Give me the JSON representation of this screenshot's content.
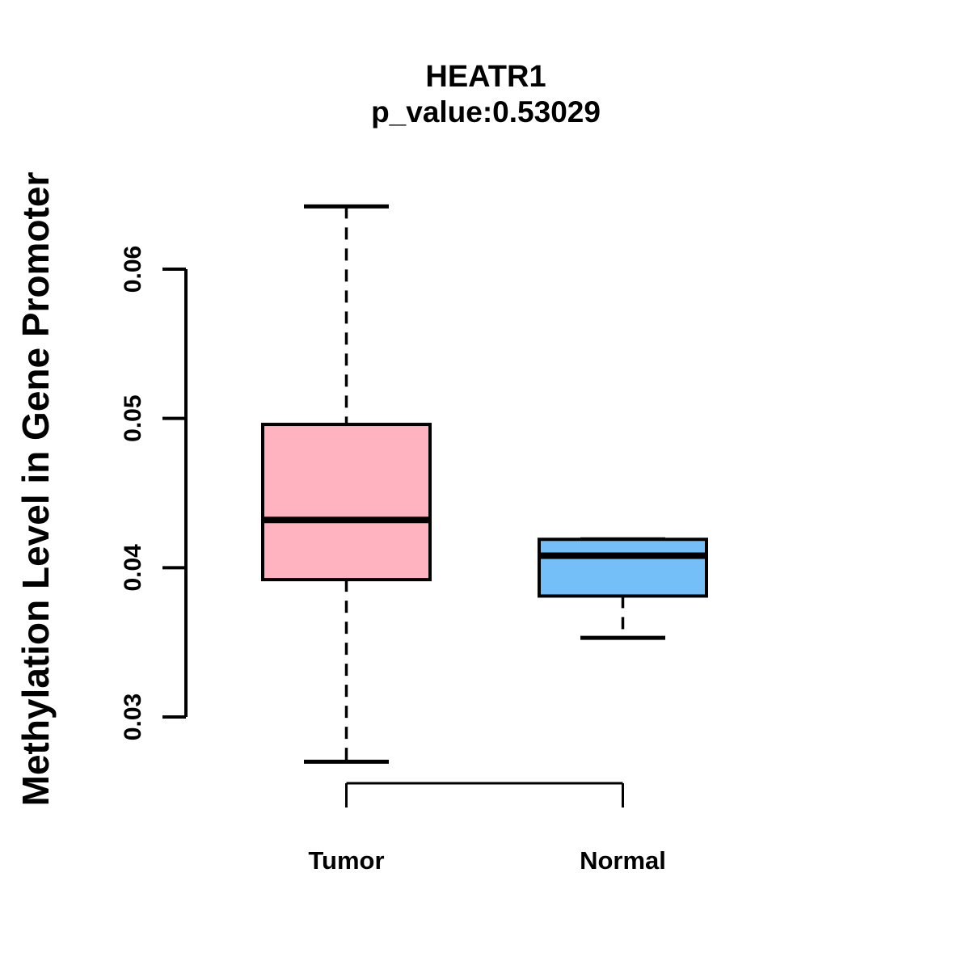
{
  "figure": {
    "background": "#FFFFFF",
    "stroke_color": "#000000"
  },
  "chart_data": {
    "type": "boxplot",
    "title": "HEATR1",
    "subtitle": "p_value:0.53029",
    "ylabel": "Methylation Level in Gene Promoter",
    "xlabel": "",
    "categories": [
      "Tumor",
      "Normal"
    ],
    "y_ticks": [
      0.03,
      0.04,
      0.05,
      0.06
    ],
    "y_tick_labels": [
      "0.03",
      "0.04",
      "0.05",
      "0.06"
    ],
    "ylim": [
      0.026,
      0.065
    ],
    "grid": false,
    "legend": "none",
    "series": [
      {
        "name": "Tumor",
        "color": "#FFB3C1",
        "lower_whisker": 0.027,
        "q1": 0.0392,
        "median": 0.0432,
        "q3": 0.0496,
        "upper_whisker": 0.0642
      },
      {
        "name": "Normal",
        "color": "#74BFF7",
        "lower_whisker": 0.0353,
        "q1": 0.0381,
        "median": 0.0408,
        "q3": 0.0419,
        "upper_whisker": 0.0419
      }
    ]
  }
}
